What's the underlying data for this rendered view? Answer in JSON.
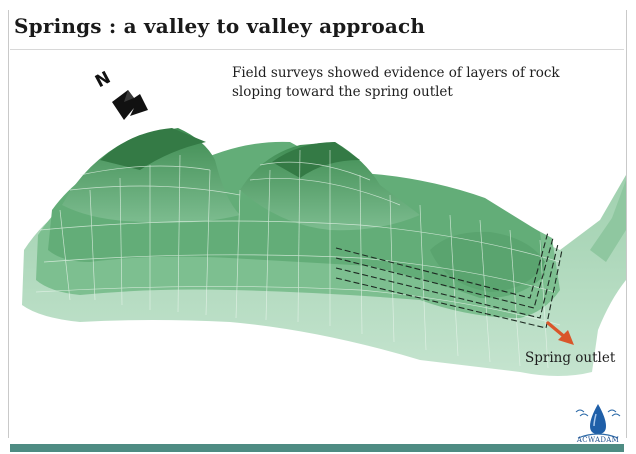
{
  "slide": {
    "title": "Springs : a valley to valley approach",
    "note_line1": "Field surveys showed evidence of layers of rock",
    "note_line2": "sloping toward the spring outlet",
    "outlet_label": "Spring outlet",
    "compass_letter": "N",
    "logo_text": "ACWADAM"
  },
  "colors": {
    "terrain_dark": "#3e8a4f",
    "terrain_mid": "#6bb07f",
    "terrain_light": "#b8dcc3",
    "arrow": "#d9562a",
    "bottom_bar": "#4e8c83"
  }
}
